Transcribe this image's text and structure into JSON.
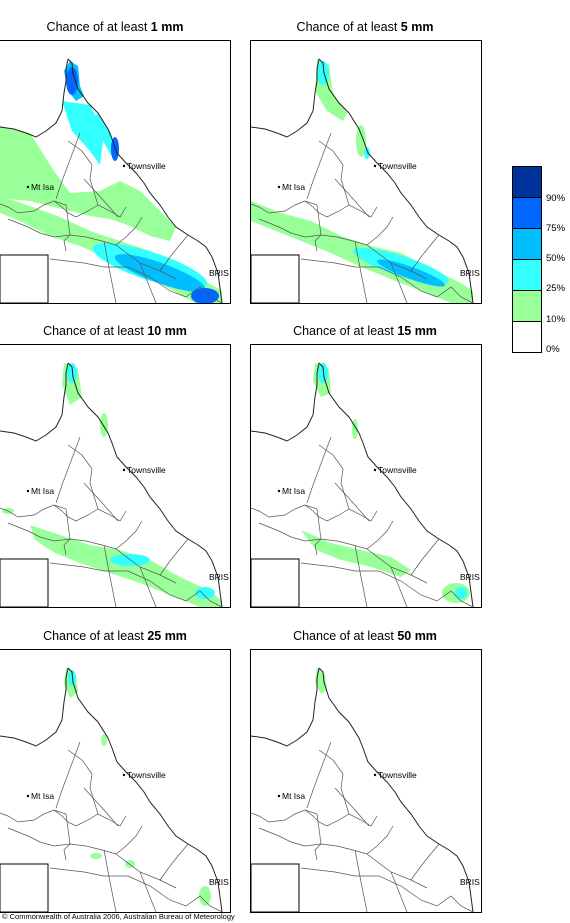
{
  "panels": [
    {
      "prefix": "Chance of at least ",
      "amount": "1 mm"
    },
    {
      "prefix": "Chance of at least ",
      "amount": "5 mm"
    },
    {
      "prefix": "Chance of at least ",
      "amount": "10 mm"
    },
    {
      "prefix": "Chance of at least ",
      "amount": "15 mm"
    },
    {
      "prefix": "Chance of at least ",
      "amount": "25 mm"
    },
    {
      "prefix": "Chance of at least ",
      "amount": "50 mm"
    }
  ],
  "places": {
    "townsville": "Townsville",
    "mt_isa": "Mt Isa",
    "brisbane": "BRIS"
  },
  "legend": {
    "colors": [
      "#003399",
      "#0066ff",
      "#00bfff",
      "#33ffff",
      "#99ff99",
      "#ffffff"
    ],
    "labels": [
      "90%",
      "75%",
      "50%",
      "25%",
      "10%",
      "0%"
    ]
  },
  "footer": "© Commonwealth of Australia 2006, Australian Bureau of Meteorology"
}
